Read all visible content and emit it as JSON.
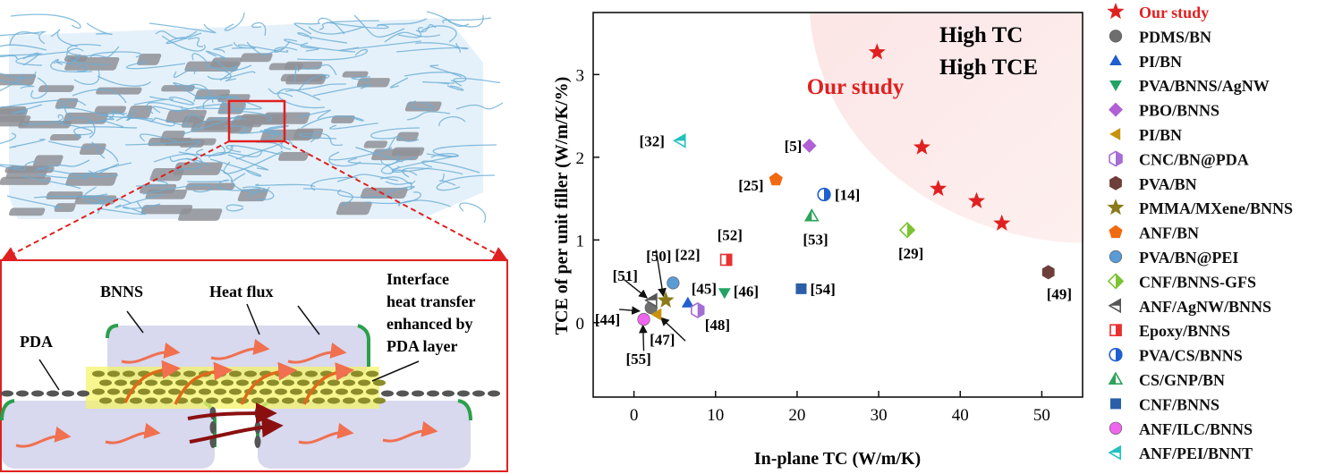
{
  "schematic": {
    "labels": {
      "bnns": "BNNS",
      "heat_flux": "Heat flux",
      "interface_l1": "Interface",
      "interface_l2": "heat transfer",
      "interface_l3": "enhanced by",
      "interface_l4": "PDA layer",
      "pda": "PDA"
    },
    "colors": {
      "fiber": "#6aaed6",
      "sheet": "#8f9196",
      "box": "#d8d8ee",
      "cap": "#2aa04a",
      "highlight": "#f4f36a",
      "arrow": "#f07050",
      "dark_arrow": "#8a1010",
      "frame": "#e02020"
    }
  },
  "chart_data": {
    "type": "scatter",
    "title": "",
    "xlabel": "In-plane TC (W/m/K)",
    "ylabel": "TCE of per unit filler (W/m/K/%)",
    "xlim": [
      -5,
      55
    ],
    "ylim": [
      -0.9,
      3.75
    ],
    "xticks": [
      0,
      10,
      20,
      30,
      40,
      50
    ],
    "yticks": [
      0,
      1,
      2,
      3
    ],
    "grid": false,
    "legend_position": "right-outside",
    "region_label": "Our study",
    "corner_text": [
      "High TC",
      "High TCE"
    ],
    "series": [
      {
        "name": "Our study",
        "marker": "star",
        "color": "#e02020",
        "points": [
          {
            "x": 29.8,
            "y": 3.27,
            "label": ""
          },
          {
            "x": 35.3,
            "y": 2.12,
            "label": ""
          },
          {
            "x": 37.3,
            "y": 1.62,
            "label": ""
          },
          {
            "x": 42.0,
            "y": 1.47,
            "label": ""
          },
          {
            "x": 45.1,
            "y": 1.2,
            "label": ""
          }
        ]
      },
      {
        "name": "PDMS/BN",
        "marker": "circle",
        "color": "#6e6e6e",
        "points": [
          {
            "x": 2.1,
            "y": 0.18,
            "label": ""
          }
        ]
      },
      {
        "name": "PI/BN",
        "marker": "triangle-up",
        "color": "#1f5fd0",
        "points": [
          {
            "x": 6.6,
            "y": 0.24,
            "label": "[45]"
          }
        ]
      },
      {
        "name": "PVA/BNNS/AgNW",
        "marker": "triangle-down",
        "color": "#22a366",
        "points": [
          {
            "x": 11.1,
            "y": 0.36,
            "label": "[46]"
          }
        ]
      },
      {
        "name": "PBO/BNNS",
        "marker": "diamond",
        "color": "#b061d6",
        "points": [
          {
            "x": 21.5,
            "y": 2.14,
            "label": "[5]"
          }
        ]
      },
      {
        "name": "PI/BN",
        "marker": "triangle-left",
        "color": "#c8920c",
        "points": [
          {
            "x": 2.8,
            "y": 0.1,
            "label": "[47]"
          }
        ]
      },
      {
        "name": "CNC/BN@PDA",
        "marker": "hexagon-half",
        "color": "#a46ed4",
        "points": [
          {
            "x": 7.8,
            "y": 0.15,
            "label": "[48]"
          }
        ]
      },
      {
        "name": "PVA/BN",
        "marker": "hexagon",
        "color": "#6e3e3a",
        "points": [
          {
            "x": 50.8,
            "y": 0.61,
            "label": "[49]"
          }
        ]
      },
      {
        "name": "PMMA/MXene/BNNS",
        "marker": "star",
        "color": "#8a7a1a",
        "points": [
          {
            "x": 3.9,
            "y": 0.27,
            "label": "[50]"
          }
        ]
      },
      {
        "name": "ANF/BN",
        "marker": "pentagon",
        "color": "#f06a10",
        "points": [
          {
            "x": 17.4,
            "y": 1.73,
            "label": "[25]"
          }
        ]
      },
      {
        "name": "PVA/BN@PEI",
        "marker": "circle",
        "color": "#5b9bd5",
        "points": [
          {
            "x": 4.8,
            "y": 0.48,
            "label": "[22]"
          }
        ]
      },
      {
        "name": "CNF/BNNS-GFS",
        "marker": "diamond-half",
        "color": "#7ac431",
        "points": [
          {
            "x": 33.5,
            "y": 1.12,
            "label": "[29]"
          }
        ]
      },
      {
        "name": "ANF/AgNW/BNNS",
        "marker": "triangle-left-half",
        "color": "#555555",
        "points": [
          {
            "x": 2.2,
            "y": 0.27,
            "label": "[51]"
          }
        ]
      },
      {
        "name": "Epoxy/BNNS",
        "marker": "square-half",
        "color": "#e83030",
        "points": [
          {
            "x": 11.3,
            "y": 0.76,
            "label": "[52]"
          }
        ]
      },
      {
        "name": "PVA/CS/BNNS",
        "marker": "circle-half",
        "color": "#1f5fd0",
        "points": [
          {
            "x": 23.3,
            "y": 1.55,
            "label": "[14]"
          }
        ]
      },
      {
        "name": "CS/GNP/BN",
        "marker": "triangle-up-half",
        "color": "#2ea35a",
        "points": [
          {
            "x": 21.8,
            "y": 1.29,
            "label": "[53]"
          }
        ]
      },
      {
        "name": "CNF/BNNS",
        "marker": "square",
        "color": "#2a5fa8",
        "points": [
          {
            "x": 20.5,
            "y": 0.41,
            "label": "[54]"
          }
        ]
      },
      {
        "name": "ANF/ILC/BNNS",
        "marker": "circle",
        "color": "#ee66ee",
        "points": [
          {
            "x": 1.2,
            "y": 0.04,
            "label": "[55]"
          }
        ]
      },
      {
        "name": "ANF/PEI/BNNT",
        "marker": "triangle-left-half",
        "color": "#23c1c1",
        "points": [
          {
            "x": 5.7,
            "y": 2.2,
            "label": "[32]"
          }
        ]
      }
    ],
    "extra_labels": [
      "[44]"
    ]
  }
}
